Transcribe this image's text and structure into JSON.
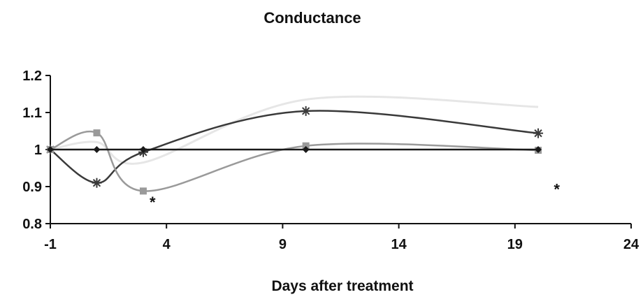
{
  "chart_data": {
    "type": "line",
    "title": "Conductance",
    "xlabel": "Days after treatment",
    "ylabel": "",
    "xlim": [
      -1,
      24
    ],
    "ylim": [
      0.8,
      1.2
    ],
    "xticks": [
      -1,
      4,
      9,
      14,
      19,
      24
    ],
    "xtick_labels": [
      "-1",
      "4",
      "9",
      "14",
      "19",
      "24"
    ],
    "yticks": [
      0.8,
      0.9,
      1.0,
      1.1,
      1.2
    ],
    "ytick_labels": [
      "0.8",
      "0.9",
      "1",
      "1.1",
      "1.2"
    ],
    "grid": false,
    "series": [
      {
        "x": [
          -1,
          1,
          3,
          10,
          20
        ],
        "y": [
          1.0,
          1.0,
          1.0,
          1.0,
          1.0
        ],
        "color": "#1a1a1a",
        "marker": "diamond",
        "smooth": false
      },
      {
        "x": [
          -1,
          1,
          3,
          10,
          20
        ],
        "y": [
          1.0,
          1.045,
          0.888,
          1.01,
          0.998
        ],
        "color": "#9a9a9a",
        "marker": "square",
        "smooth": true
      },
      {
        "x": [
          -1,
          1,
          3,
          10,
          20
        ],
        "y": [
          1.0,
          0.91,
          0.993,
          1.104,
          1.044
        ],
        "color": "#3a3a3a",
        "marker": "asterisk",
        "smooth": true
      },
      {
        "x": [
          -1,
          1,
          3,
          10,
          20
        ],
        "y": [
          1.0,
          1.02,
          0.965,
          1.135,
          1.115
        ],
        "color": "#e6e6e6",
        "marker": "none",
        "smooth": true
      }
    ],
    "annotations": [
      {
        "text": "*",
        "x": 3.4,
        "y": 0.87
      },
      {
        "text": "*",
        "x": 20.8,
        "y": 0.905
      }
    ]
  }
}
